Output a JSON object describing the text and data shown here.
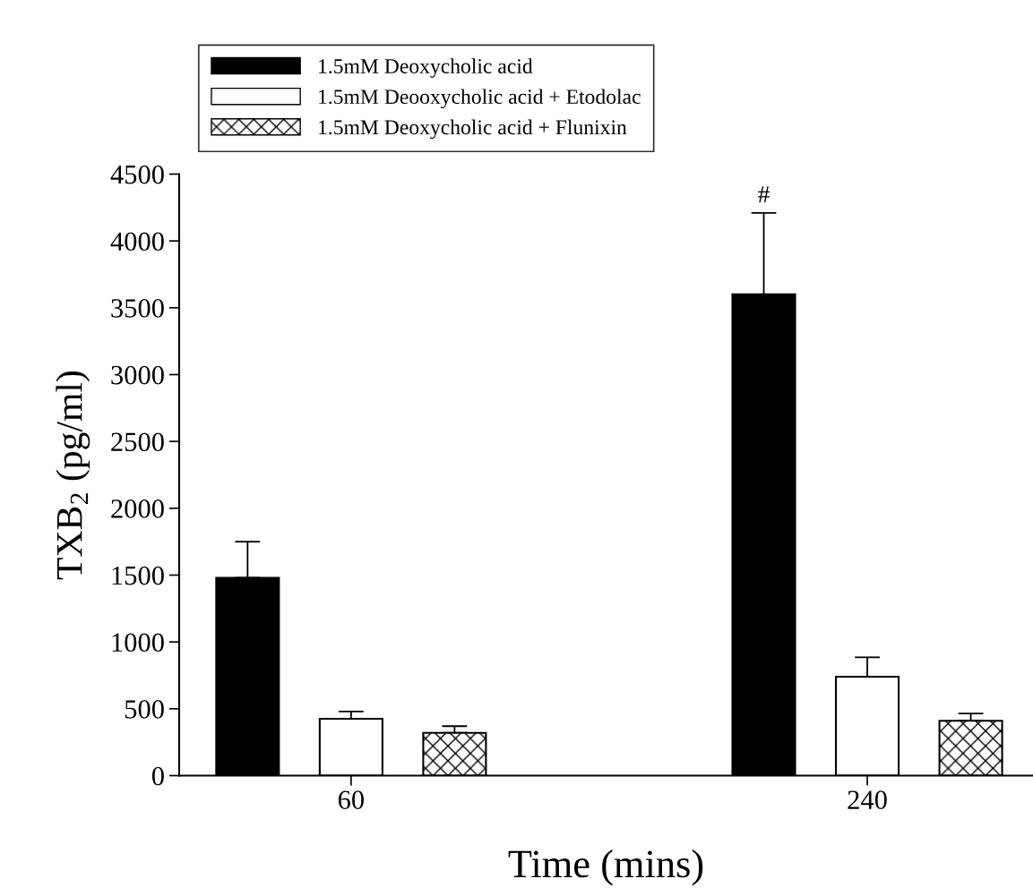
{
  "chart_data": {
    "type": "bar",
    "xlabel": "Time (mins)",
    "ylabel": "TXB$_{2}$ (pg/ml)",
    "categories": [
      "60",
      "240"
    ],
    "series": [
      {
        "name": "1.5mM Deoxycholic acid",
        "color": "#000000",
        "values": [
          1480,
          3600
        ],
        "errors": [
          [
            1480,
            1750
          ],
          [
            3600,
            4210
          ]
        ]
      },
      {
        "name": "1.5mM Deooxycholic acid + Etodolac",
        "color": "#ffffff",
        "values": [
          425,
          740
        ],
        "errors": [
          [
            425,
            480
          ],
          [
            740,
            885
          ]
        ]
      },
      {
        "name": "1.5mM Deoxycholic acid + Flunixin",
        "color": "#000000",
        "values": [
          320,
          410
        ],
        "errors": [
          [
            320,
            370
          ],
          [
            410,
            465
          ]
        ]
      }
    ],
    "ylim": [
      0,
      4500
    ],
    "yticks": [
      0,
      500,
      1000,
      1500,
      2000,
      2500,
      3000,
      3500,
      4000,
      4500
    ],
    "annotations": [
      "#"
    ],
    "grid": false,
    "legend": "top"
  }
}
